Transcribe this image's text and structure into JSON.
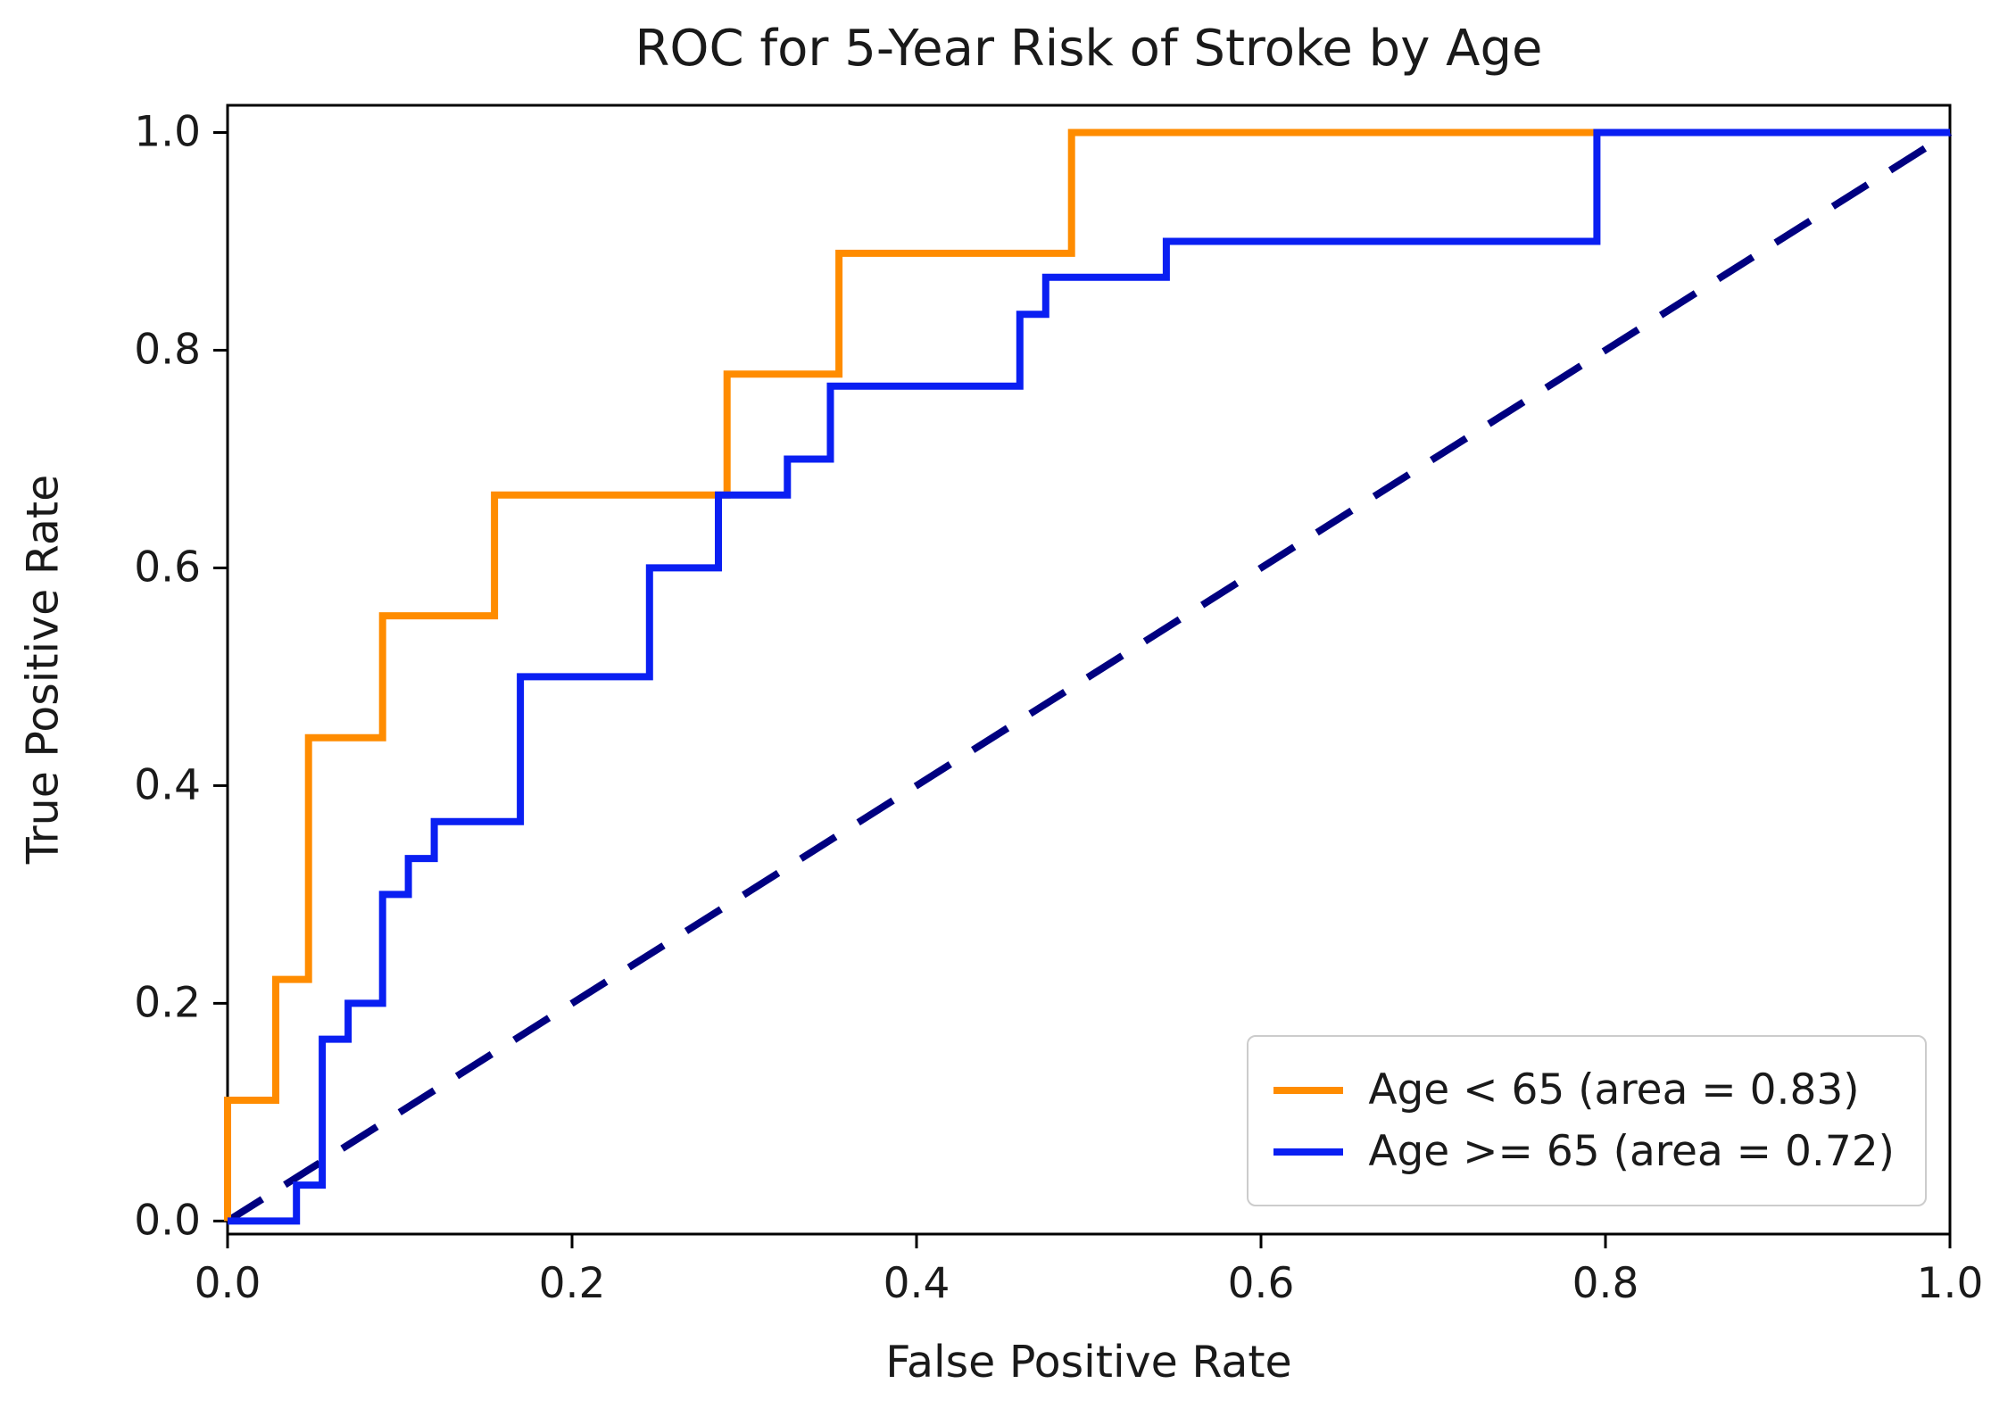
{
  "chart_data": {
    "type": "line",
    "subtype": "roc-step-curves",
    "title": "ROC for 5-Year Risk of Stroke by Age",
    "xlabel": "False Positive Rate",
    "ylabel": "True Positive Rate",
    "xlim": [
      0.0,
      1.0
    ],
    "ylim": [
      0.0,
      1.0
    ],
    "x_ticks": [
      "0.0",
      "0.2",
      "0.4",
      "0.6",
      "0.8",
      "1.0"
    ],
    "y_ticks": [
      "0.0",
      "0.2",
      "0.4",
      "0.6",
      "0.8",
      "1.0"
    ],
    "grid": false,
    "legend_position": "lower right",
    "series": [
      {
        "id": "age-lt-65",
        "name": "Age < 65 (area = 0.83)",
        "auc": 0.83,
        "color": "#ff8c00",
        "points": [
          [
            0.0,
            0.0
          ],
          [
            0.0,
            0.111
          ],
          [
            0.028,
            0.111
          ],
          [
            0.028,
            0.222
          ],
          [
            0.047,
            0.222
          ],
          [
            0.047,
            0.444
          ],
          [
            0.09,
            0.444
          ],
          [
            0.09,
            0.556
          ],
          [
            0.155,
            0.556
          ],
          [
            0.155,
            0.667
          ],
          [
            0.29,
            0.667
          ],
          [
            0.29,
            0.778
          ],
          [
            0.355,
            0.778
          ],
          [
            0.355,
            0.889
          ],
          [
            0.49,
            0.889
          ],
          [
            0.49,
            1.0
          ],
          [
            1.0,
            1.0
          ]
        ]
      },
      {
        "id": "age-gte-65",
        "name": "Age >= 65 (area = 0.72)",
        "auc": 0.72,
        "color": "#0a1ff2",
        "points": [
          [
            0.0,
            0.0
          ],
          [
            0.04,
            0.0
          ],
          [
            0.04,
            0.033
          ],
          [
            0.055,
            0.033
          ],
          [
            0.055,
            0.167
          ],
          [
            0.07,
            0.167
          ],
          [
            0.07,
            0.2
          ],
          [
            0.09,
            0.2
          ],
          [
            0.09,
            0.3
          ],
          [
            0.105,
            0.3
          ],
          [
            0.105,
            0.333
          ],
          [
            0.12,
            0.333
          ],
          [
            0.12,
            0.367
          ],
          [
            0.17,
            0.367
          ],
          [
            0.17,
            0.5
          ],
          [
            0.245,
            0.5
          ],
          [
            0.245,
            0.6
          ],
          [
            0.285,
            0.6
          ],
          [
            0.285,
            0.667
          ],
          [
            0.325,
            0.667
          ],
          [
            0.325,
            0.7
          ],
          [
            0.35,
            0.7
          ],
          [
            0.35,
            0.767
          ],
          [
            0.46,
            0.767
          ],
          [
            0.46,
            0.833
          ],
          [
            0.475,
            0.833
          ],
          [
            0.475,
            0.867
          ],
          [
            0.545,
            0.867
          ],
          [
            0.545,
            0.9
          ],
          [
            0.795,
            0.9
          ],
          [
            0.795,
            1.0
          ],
          [
            1.0,
            1.0
          ]
        ]
      }
    ],
    "reference_line": {
      "id": "chance-diagonal",
      "points": [
        [
          0.0,
          0.0
        ],
        [
          1.0,
          1.0
        ]
      ],
      "color": "#000080",
      "style": "dashed"
    }
  }
}
